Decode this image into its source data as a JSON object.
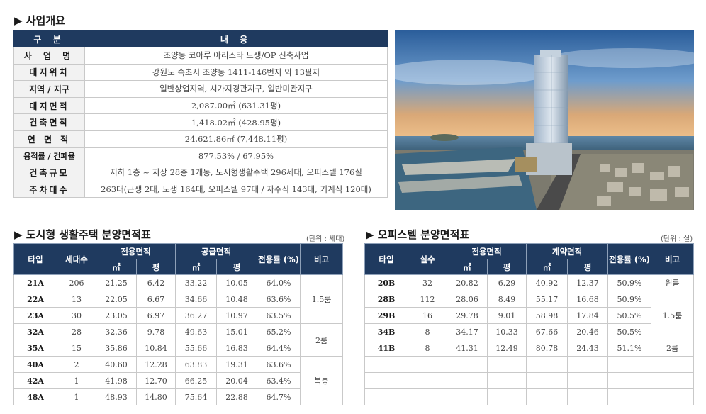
{
  "overview": {
    "title": "▶ 사업개요",
    "header": [
      "구 분",
      "내 용"
    ],
    "rows": [
      {
        "label": "사 업 명",
        "value": "조양동 코아루 아리스타 도생/OP 신축사업"
      },
      {
        "label": "대지위치",
        "value": "강원도 속초시 조양동 1411-146번지 외 13필지"
      },
      {
        "label": "지역 / 지구",
        "value": "일반상업지역, 시가지경관지구, 일반미관지구"
      },
      {
        "label": "대지면적",
        "value": "2,087.00㎡ (631.31평)"
      },
      {
        "label": "건축면적",
        "value": "1,418.02㎡ (428.95평)"
      },
      {
        "label": "연 면 적",
        "value": "24,621.86㎡ (7,448.11평)"
      },
      {
        "label": "용적률 / 건폐율",
        "value": "877.53% / 67.95%"
      },
      {
        "label": "건축규모",
        "value": "지하 1층 ~ 지상 28층 1개동, 도시형생활주택 296세대, 오피스텔 176실"
      },
      {
        "label": "주차대수",
        "value": "263대(근생 2대, 도생 164대, 오피스텔 97대  / 자주식 143대, 기계식 120대)"
      }
    ]
  },
  "housing": {
    "title": "▶ 도시형 생활주택 분양면적표",
    "unit": "(단위 : 세대)",
    "headers": {
      "type": "타입",
      "count": "세대수",
      "exclusive": "전용면적",
      "supply": "공급면적",
      "ratio": "전용률 (%)",
      "note": "비고",
      "sqm": "㎡",
      "pyeong": "평"
    },
    "rows": [
      [
        "21A",
        "206",
        "21.25",
        "6.42",
        "33.22",
        "10.05",
        "64.0%"
      ],
      [
        "22A",
        "13",
        "22.05",
        "6.67",
        "34.66",
        "10.48",
        "63.6%"
      ],
      [
        "23A",
        "30",
        "23.05",
        "6.97",
        "36.27",
        "10.97",
        "63.5%"
      ],
      [
        "32A",
        "28",
        "32.36",
        "9.78",
        "49.63",
        "15.01",
        "65.2%"
      ],
      [
        "35A",
        "15",
        "35.86",
        "10.84",
        "55.66",
        "16.83",
        "64.4%"
      ],
      [
        "40A",
        "2",
        "40.60",
        "12.28",
        "63.83",
        "19.31",
        "63.6%"
      ],
      [
        "42A",
        "1",
        "41.98",
        "12.70",
        "66.25",
        "20.04",
        "63.4%"
      ],
      [
        "48A",
        "1",
        "48.93",
        "14.80",
        "75.64",
        "22.88",
        "64.7%"
      ]
    ],
    "notes": [
      "1.5룸",
      "2룸",
      "복층"
    ]
  },
  "officetel": {
    "title": "▶ 오피스텔 분양면적표",
    "unit": "(단위 : 실)",
    "headers": {
      "type": "타입",
      "count": "실수",
      "exclusive": "전용면적",
      "contract": "계약면적",
      "ratio": "전용률 (%)",
      "note": "비고",
      "sqm": "㎡",
      "pyeong": "평"
    },
    "rows": [
      [
        "20B",
        "32",
        "20.82",
        "6.29",
        "40.92",
        "12.37",
        "50.9%"
      ],
      [
        "28B",
        "112",
        "28.06",
        "8.49",
        "55.17",
        "16.68",
        "50.9%"
      ],
      [
        "29B",
        "16",
        "29.78",
        "9.01",
        "58.98",
        "17.84",
        "50.5%"
      ],
      [
        "34B",
        "8",
        "34.17",
        "10.33",
        "67.66",
        "20.46",
        "50.5%"
      ],
      [
        "41B",
        "8",
        "41.31",
        "12.49",
        "80.78",
        "24.43",
        "51.1%"
      ]
    ],
    "notes": [
      "원룸",
      "1.5룸",
      "2룸"
    ]
  }
}
